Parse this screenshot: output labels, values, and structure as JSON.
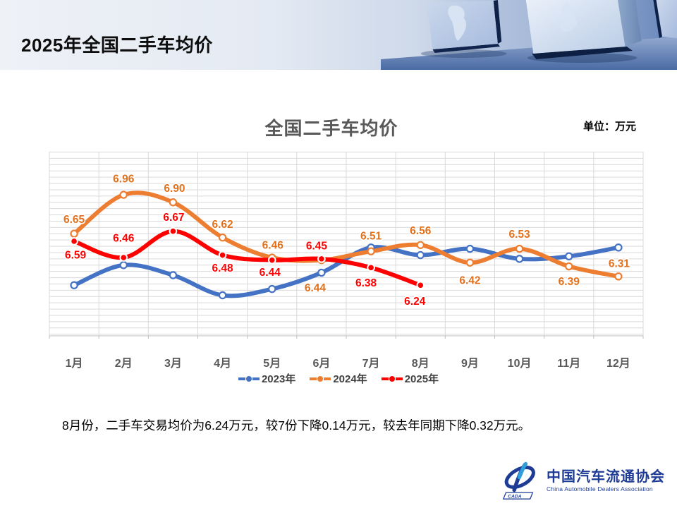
{
  "header": {
    "title": "2025年全国二手车均价"
  },
  "chart": {
    "title": "全国二手车均价",
    "unit_label": "单位：万元"
  },
  "chart_data": {
    "type": "line",
    "smoothed": true,
    "title": "全国二手车均价",
    "unit": "万元",
    "categories": [
      "1月",
      "2月",
      "3月",
      "4月",
      "5月",
      "6月",
      "7月",
      "8月",
      "9月",
      "10月",
      "11月",
      "12月"
    ],
    "series": [
      {
        "name": "2023年",
        "color": "#4472C4",
        "marker": "hollow",
        "data_labels": false,
        "values": [
          6.24,
          6.4,
          6.32,
          6.16,
          6.21,
          6.34,
          6.54,
          6.48,
          6.53,
          6.45,
          6.47,
          6.54
        ]
      },
      {
        "name": "2024年",
        "color": "#ED7D31",
        "label_color": "#E2711D",
        "marker": "hollow",
        "data_labels": true,
        "values": [
          6.65,
          6.96,
          6.9,
          6.62,
          6.46,
          6.44,
          6.51,
          6.56,
          6.42,
          6.53,
          6.39,
          6.31
        ],
        "label_offsets": [
          [
            0,
            -21
          ],
          [
            0,
            -23
          ],
          [
            2,
            -20
          ],
          [
            0,
            -19
          ],
          [
            1,
            -18
          ],
          [
            -9,
            39
          ],
          [
            0,
            -22
          ],
          [
            0,
            -21
          ],
          [
            0,
            25
          ],
          [
            0,
            -21
          ],
          [
            0,
            21
          ],
          [
            1,
            -19
          ]
        ]
      },
      {
        "name": "2025年",
        "color": "#FF0000",
        "label_color": "#FF0000",
        "marker": "filled",
        "data_labels": true,
        "values": [
          6.59,
          6.46,
          6.67,
          6.48,
          6.44,
          6.45,
          6.38,
          6.24
        ],
        "label_offsets": [
          [
            2,
            19
          ],
          [
            0,
            -28
          ],
          [
            1,
            -20
          ],
          [
            0,
            18
          ],
          [
            -3,
            17
          ],
          [
            -7,
            -19
          ],
          [
            -7,
            21
          ],
          [
            -8,
            22
          ]
        ]
      }
    ],
    "ylim": [
      5.84,
      7.3
    ],
    "y_minor_unit": 0.05,
    "grid": {
      "horizontal": true,
      "vertical": true,
      "color": "#D9D9D9"
    },
    "axis_text_color": "#595959",
    "legend_position": "bottom-center"
  },
  "summary": {
    "text": "8月份，二手车交易均价为6.24万元，较7份下降0.14万元，较去年同期下降0.32万元。"
  },
  "logo": {
    "acronym": "CADA",
    "name_cn": "中国汽车流通协会",
    "name_en": "China Automobile Dealers Association",
    "color": "#1E3C96"
  }
}
